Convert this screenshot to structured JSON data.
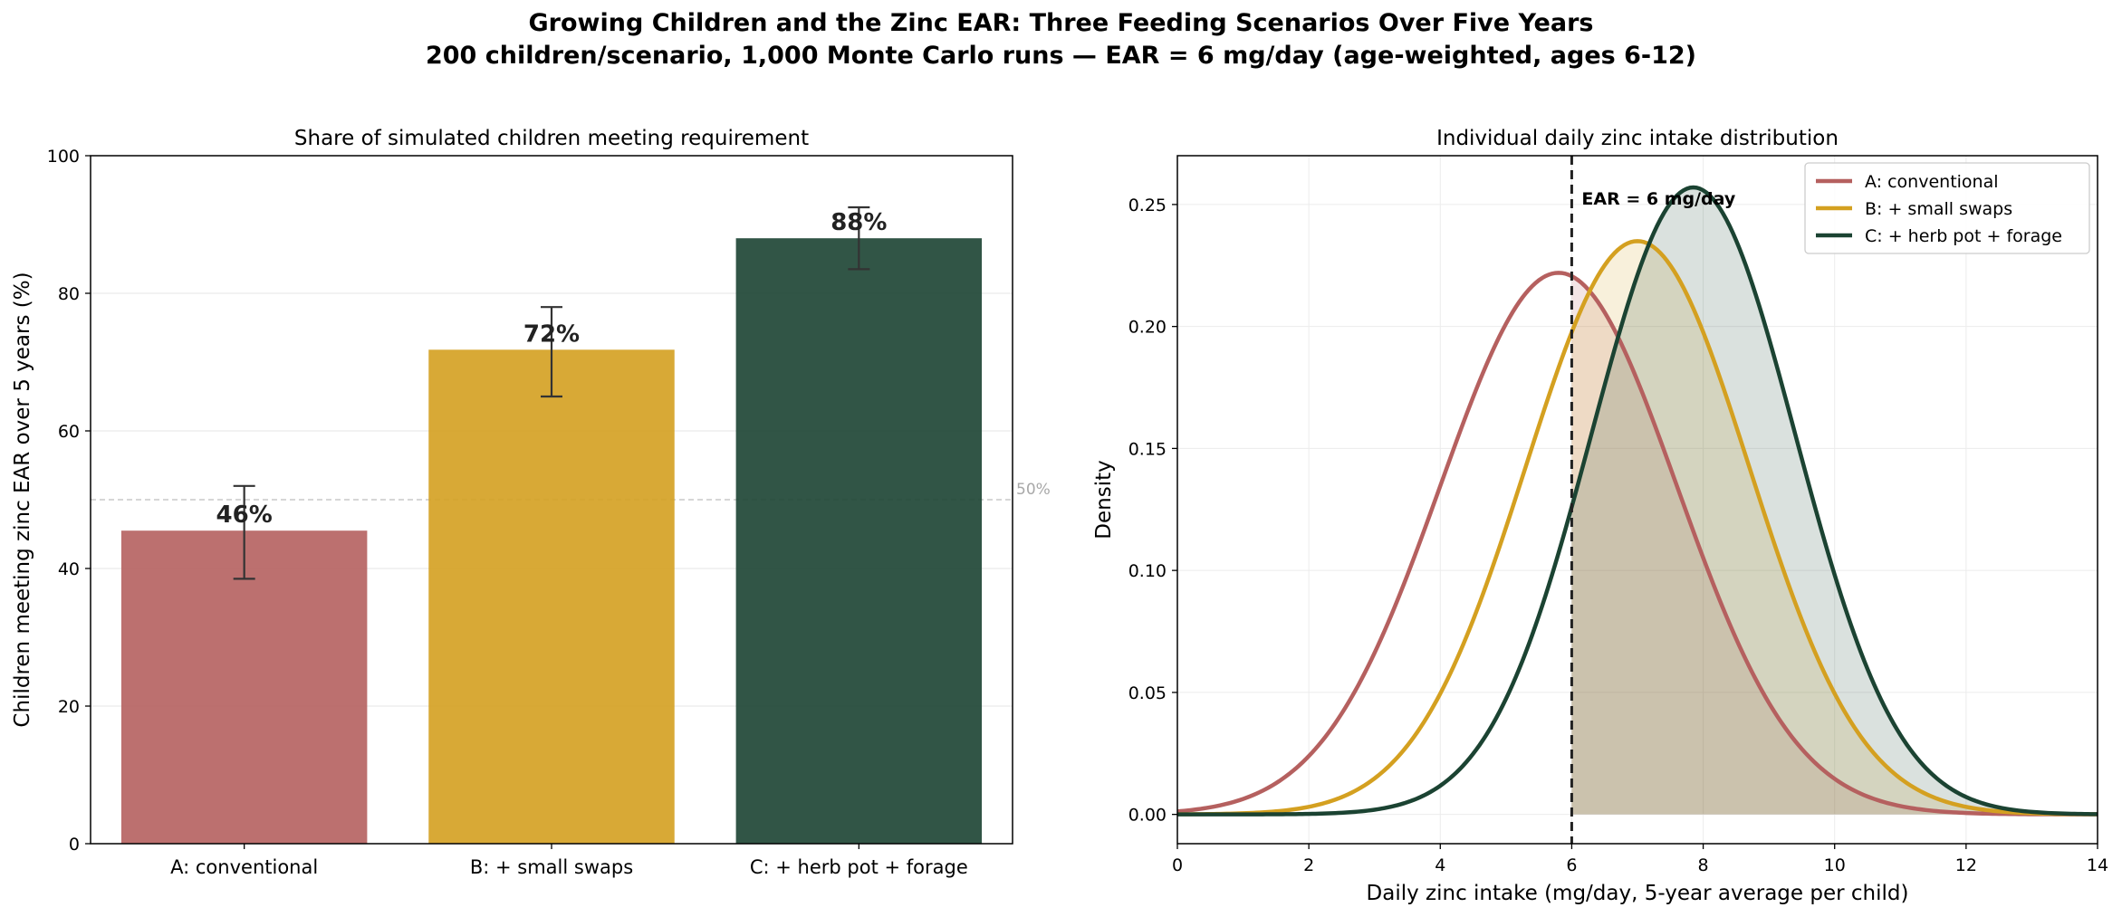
{
  "figure": {
    "title_line1": "Growing Children and the Zinc EAR: Three Feeding Scenarios Over Five Years",
    "title_line2": "200 children/scenario, 1,000 Monte Carlo runs — EAR = 6 mg/day (age-weighted, ages 6-12)"
  },
  "colors": {
    "A": "#b5605f",
    "B": "#d4a020",
    "C": "#1b4332"
  },
  "chart_data": [
    {
      "type": "bar",
      "title": "Share of simulated children meeting requirement",
      "categories": [
        "A: conventional",
        "B: + small swaps",
        "C: + herb pot + forage"
      ],
      "values": [
        45.5,
        71.8,
        88.0
      ],
      "error_low": [
        38.5,
        65.0,
        83.5
      ],
      "error_high": [
        52.0,
        78.0,
        92.5
      ],
      "data_labels": [
        "46%",
        "72%",
        "88%"
      ],
      "ylabel": "Children meeting zinc EAR over 5 years (%)",
      "ylim": [
        0,
        100
      ],
      "yticks": [
        0,
        20,
        40,
        60,
        80,
        100
      ],
      "reference_line": {
        "value": 50,
        "label": "50%"
      },
      "grid": true
    },
    {
      "type": "line",
      "title": "Individual daily zinc intake distribution",
      "xlabel": "Daily zinc intake (mg/day, 5-year average per child)",
      "ylabel": "Density",
      "xlim": [
        0,
        14
      ],
      "ylim": [
        -0.012,
        0.27
      ],
      "xticks": [
        0,
        2,
        4,
        6,
        8,
        10,
        12,
        14
      ],
      "yticks": [
        0.0,
        0.05,
        0.1,
        0.15,
        0.2,
        0.25
      ],
      "ytick_labels": [
        "0.00",
        "0.05",
        "0.10",
        "0.15",
        "0.20",
        "0.25"
      ],
      "series": [
        {
          "name": "A: conventional",
          "key": "A",
          "mean": 5.8,
          "sd": 1.8,
          "peak": 0.222
        },
        {
          "name": "B: + small swaps",
          "key": "B",
          "mean": 7.0,
          "sd": 1.7,
          "peak": 0.235
        },
        {
          "name": "C: + herb pot + forage",
          "key": "C",
          "mean": 7.85,
          "sd": 1.55,
          "peak": 0.257
        }
      ],
      "reference_line": {
        "x": 6,
        "label": "EAR = 6 mg/day"
      },
      "shaded_region": "x >= 6",
      "legend_position": "top-right",
      "grid": true
    }
  ]
}
